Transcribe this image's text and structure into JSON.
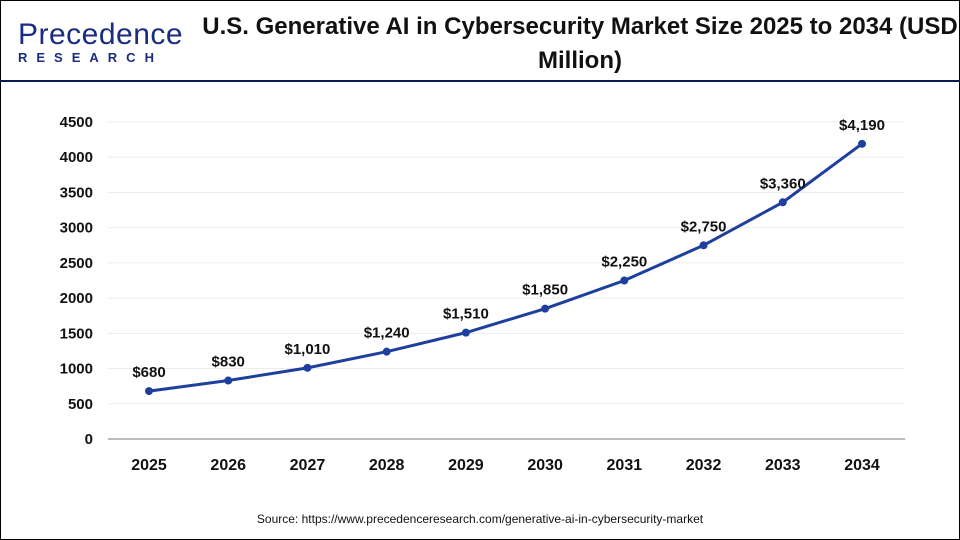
{
  "logo": {
    "line1": "Precedence",
    "line2": "RESEARCH"
  },
  "title": "U.S. Generative AI in Cybersecurity Market Size 2025 to 2034 (USD Million)",
  "source": "Source: https://www.precedenceresearch.com/generative-ai-in-cybersecurity-market",
  "colors": {
    "line": "#1f3f9e",
    "title_bar": "#0d1b4d"
  },
  "chart_data": {
    "type": "line",
    "categories": [
      "2025",
      "2026",
      "2027",
      "2028",
      "2029",
      "2030",
      "2031",
      "2032",
      "2033",
      "2034"
    ],
    "values": [
      680,
      830,
      1010,
      1240,
      1510,
      1850,
      2250,
      2750,
      3360,
      4190
    ],
    "labels": [
      "$680",
      "$830",
      "$1,010",
      "$1,240",
      "$1,510",
      "$1,850",
      "$2,250",
      "$2,750",
      "$3,360",
      "$4,190"
    ],
    "ylim": [
      0,
      4500
    ],
    "yticks": [
      0,
      500,
      1000,
      1500,
      2000,
      2500,
      3000,
      3500,
      4000,
      4500
    ],
    "grid": true,
    "xlabel": "",
    "ylabel": ""
  }
}
